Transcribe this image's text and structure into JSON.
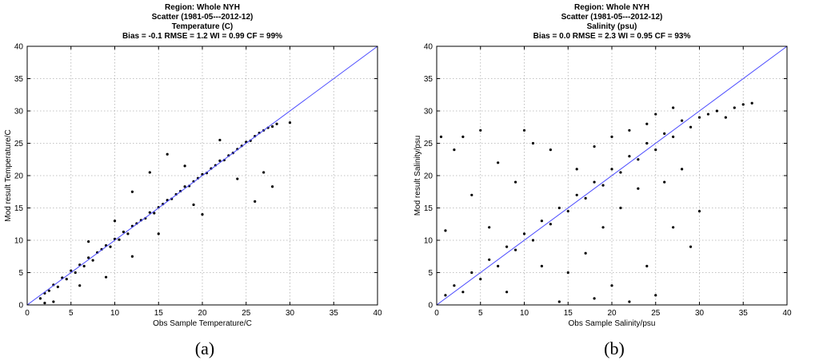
{
  "chart_data": [
    {
      "type": "scatter",
      "panel_label": "(a)",
      "title_lines": [
        "Region: Whole NYH",
        "Scatter (1981-05---2012-12)",
        "Temperature (C)"
      ],
      "stats_line": "Bias = -0.1   RMSE = 1.2   WI = 0.99   CF = 99%",
      "xlabel": "Obs Sample Temperature/C",
      "ylabel": "Mod result Temperature/C",
      "xlim": [
        0,
        40
      ],
      "ylim": [
        0,
        40
      ],
      "xticks": [
        0,
        5,
        10,
        15,
        20,
        25,
        30,
        35,
        40
      ],
      "yticks": [
        0,
        5,
        10,
        15,
        20,
        25,
        30,
        35,
        40
      ],
      "grid": true,
      "reference_line": {
        "from": [
          0,
          0
        ],
        "to": [
          40,
          40
        ],
        "color": "#4a4aff"
      },
      "point_color": "#000000",
      "points": [
        [
          1.5,
          1.0
        ],
        [
          2.0,
          1.8
        ],
        [
          2.5,
          2.2
        ],
        [
          3.0,
          3.1
        ],
        [
          3.5,
          2.8
        ],
        [
          4.0,
          4.2
        ],
        [
          4.5,
          4.0
        ],
        [
          5.0,
          5.3
        ],
        [
          5.5,
          5.0
        ],
        [
          6.0,
          6.2
        ],
        [
          6.5,
          6.0
        ],
        [
          7.0,
          7.3
        ],
        [
          7.5,
          6.9
        ],
        [
          8.0,
          8.1
        ],
        [
          8.5,
          8.6
        ],
        [
          9.0,
          9.2
        ],
        [
          9.5,
          9.0
        ],
        [
          10.0,
          10.2
        ],
        [
          10.5,
          10.1
        ],
        [
          11.0,
          11.3
        ],
        [
          11.5,
          11.0
        ],
        [
          12.0,
          12.2
        ],
        [
          12.5,
          12.6
        ],
        [
          13.0,
          13.1
        ],
        [
          13.5,
          13.4
        ],
        [
          14.0,
          14.3
        ],
        [
          14.5,
          14.2
        ],
        [
          15.0,
          15.1
        ],
        [
          15.5,
          15.6
        ],
        [
          16.0,
          16.2
        ],
        [
          16.5,
          16.4
        ],
        [
          17.0,
          17.1
        ],
        [
          17.5,
          17.6
        ],
        [
          18.0,
          18.3
        ],
        [
          18.5,
          18.4
        ],
        [
          19.0,
          19.1
        ],
        [
          19.5,
          19.6
        ],
        [
          20.0,
          20.2
        ],
        [
          20.5,
          20.4
        ],
        [
          21.0,
          21.1
        ],
        [
          21.5,
          21.6
        ],
        [
          22.0,
          22.3
        ],
        [
          22.5,
          22.4
        ],
        [
          23.0,
          23.1
        ],
        [
          23.5,
          23.5
        ],
        [
          24.0,
          24.1
        ],
        [
          24.5,
          24.6
        ],
        [
          25.0,
          25.2
        ],
        [
          25.5,
          25.4
        ],
        [
          26.0,
          26.1
        ],
        [
          26.5,
          26.6
        ],
        [
          27.0,
          27.0
        ],
        [
          27.5,
          27.4
        ],
        [
          28.0,
          27.6
        ],
        [
          28.5,
          28.0
        ],
        [
          12.0,
          17.5
        ],
        [
          14.0,
          20.5
        ],
        [
          16.0,
          23.3
        ],
        [
          9.0,
          4.3
        ],
        [
          12.0,
          7.5
        ],
        [
          20.0,
          14.0
        ],
        [
          26.0,
          16.0
        ],
        [
          28.0,
          18.3
        ],
        [
          30.0,
          28.2
        ],
        [
          2.0,
          0.3
        ],
        [
          3.0,
          0.5
        ],
        [
          22.0,
          25.5
        ],
        [
          18.0,
          21.5
        ],
        [
          24.0,
          19.5
        ],
        [
          27.0,
          20.5
        ],
        [
          10.0,
          13.0
        ],
        [
          7.0,
          9.8
        ],
        [
          6.0,
          3.0
        ],
        [
          15.0,
          11.0
        ],
        [
          19.0,
          15.5
        ]
      ]
    },
    {
      "type": "scatter",
      "panel_label": "(b)",
      "title_lines": [
        "Region: Whole NYH",
        "Scatter (1981-05---2012-12)",
        "Salinity (psu)"
      ],
      "stats_line": "Bias = 0.0   RMSE = 2.3   WI = 0.95   CF = 93%",
      "xlabel": "Obs Sample Salinity/psu",
      "ylabel": "Mod result Salinity/psu",
      "xlim": [
        0,
        40
      ],
      "ylim": [
        0,
        40
      ],
      "xticks": [
        0,
        5,
        10,
        15,
        20,
        25,
        30,
        35,
        40
      ],
      "yticks": [
        0,
        5,
        10,
        15,
        20,
        25,
        30,
        35,
        40
      ],
      "grid": true,
      "reference_line": {
        "from": [
          0,
          0
        ],
        "to": [
          40,
          40
        ],
        "color": "#4a4aff"
      },
      "point_color": "#000000",
      "points": [
        [
          1.0,
          1.5
        ],
        [
          2.0,
          3.0
        ],
        [
          3.0,
          2.0
        ],
        [
          4.0,
          5.0
        ],
        [
          5.0,
          4.0
        ],
        [
          6.0,
          7.0
        ],
        [
          7.0,
          6.0
        ],
        [
          8.0,
          9.0
        ],
        [
          9.0,
          8.5
        ],
        [
          10.0,
          11.0
        ],
        [
          11.0,
          10.0
        ],
        [
          12.0,
          13.0
        ],
        [
          13.0,
          12.5
        ],
        [
          14.0,
          15.0
        ],
        [
          15.0,
          14.5
        ],
        [
          16.0,
          17.0
        ],
        [
          17.0,
          16.5
        ],
        [
          18.0,
          19.0
        ],
        [
          19.0,
          18.5
        ],
        [
          20.0,
          21.0
        ],
        [
          21.0,
          20.5
        ],
        [
          22.0,
          23.0
        ],
        [
          23.0,
          22.5
        ],
        [
          24.0,
          25.0
        ],
        [
          25.0,
          24.0
        ],
        [
          26.0,
          26.5
        ],
        [
          27.0,
          26.0
        ],
        [
          28.0,
          28.5
        ],
        [
          29.0,
          27.5
        ],
        [
          30.0,
          29.0
        ],
        [
          31.0,
          29.5
        ],
        [
          32.0,
          30.0
        ],
        [
          33.0,
          29.0
        ],
        [
          34.0,
          30.5
        ],
        [
          35.0,
          31.0
        ],
        [
          36.0,
          31.2
        ],
        [
          3.0,
          26.0
        ],
        [
          5.0,
          27.0
        ],
        [
          7.0,
          22.0
        ],
        [
          10.0,
          27.0
        ],
        [
          11.0,
          25.0
        ],
        [
          13.0,
          24.0
        ],
        [
          9.0,
          19.0
        ],
        [
          4.0,
          17.0
        ],
        [
          2.0,
          24.0
        ],
        [
          1.0,
          11.5
        ],
        [
          0.5,
          26.0
        ],
        [
          6.0,
          12.0
        ],
        [
          8.0,
          2.0
        ],
        [
          15.0,
          5.0
        ],
        [
          17.0,
          8.0
        ],
        [
          18.0,
          1.0
        ],
        [
          20.0,
          3.0
        ],
        [
          22.0,
          0.5
        ],
        [
          24.0,
          6.0
        ],
        [
          25.0,
          1.5
        ],
        [
          27.0,
          12.0
        ],
        [
          29.0,
          9.0
        ],
        [
          30.0,
          14.5
        ],
        [
          14.0,
          0.5
        ],
        [
          12.0,
          6.0
        ],
        [
          19.0,
          12.0
        ],
        [
          21.0,
          15.0
        ],
        [
          23.0,
          18.0
        ],
        [
          26.0,
          19.0
        ],
        [
          28.0,
          21.0
        ],
        [
          24.0,
          28.0
        ],
        [
          22.0,
          27.0
        ],
        [
          20.0,
          26.0
        ],
        [
          16.0,
          21.0
        ],
        [
          18.0,
          24.5
        ],
        [
          25.0,
          29.5
        ],
        [
          27.0,
          30.5
        ]
      ]
    }
  ]
}
